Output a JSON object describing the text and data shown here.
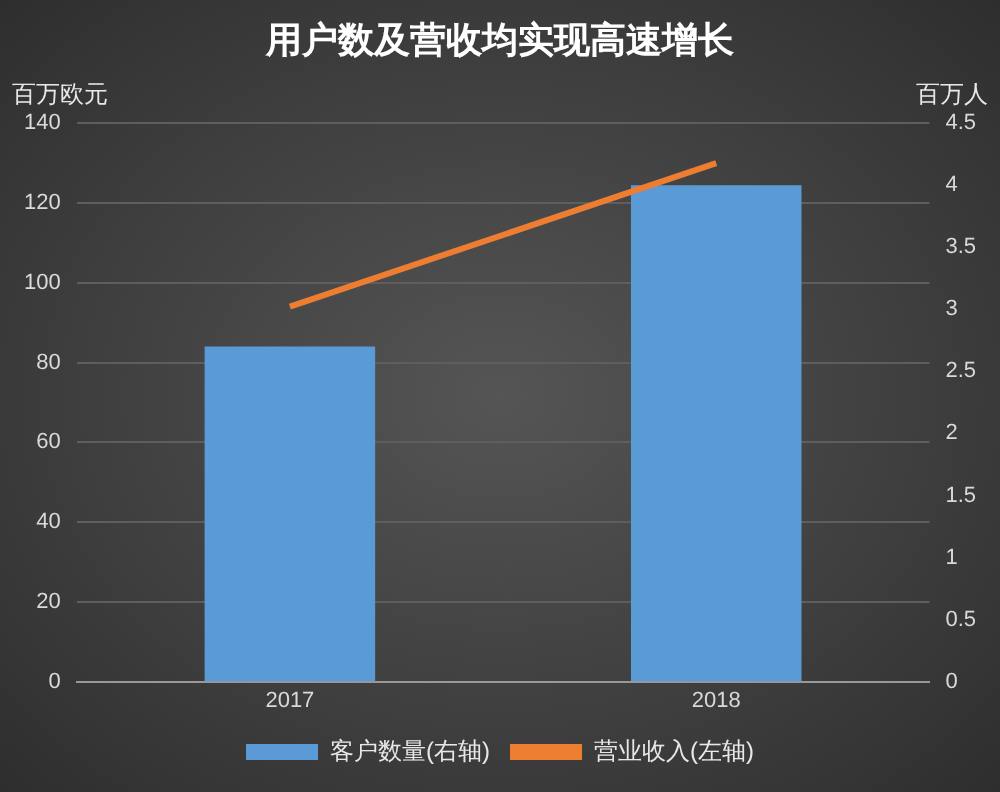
{
  "chart_data": {
    "type": "bar",
    "title": "用户数及营收均实现高速增长",
    "ylabel": "百万欧元",
    "y2label": "百万人",
    "categories": [
      "2017",
      "2018"
    ],
    "series": [
      {
        "name": "客户数量(右轴)",
        "axis": "y2",
        "color": "#5b9bd5",
        "values": [
          2.7,
          4.0
        ]
      },
      {
        "name": "营业收入(左轴)",
        "type": "line",
        "color": "#ed7d31",
        "values": [
          94,
          130
        ]
      }
    ],
    "ylim": [
      0,
      140
    ],
    "yticks": [
      0,
      20,
      40,
      60,
      80,
      100,
      120,
      140
    ],
    "y2lim": [
      0,
      4.5
    ],
    "y2ticks": [
      0,
      0.5,
      1,
      1.5,
      2,
      2.5,
      3,
      3.5,
      4,
      4.5
    ],
    "grid": "y",
    "legend": "bottom",
    "marker": "none"
  }
}
